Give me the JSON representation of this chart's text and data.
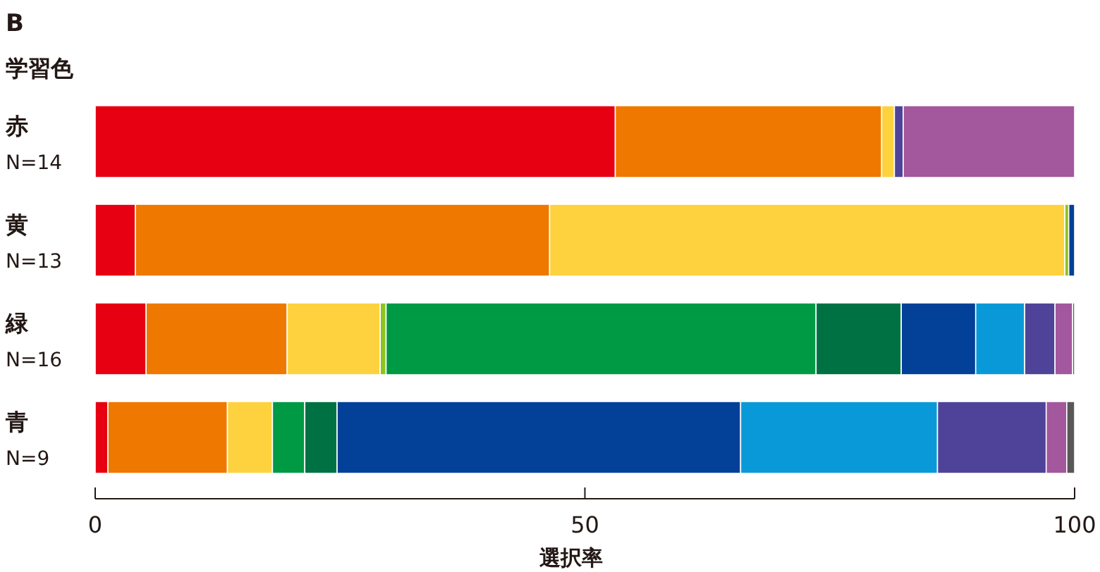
{
  "chart_data": {
    "type": "bar",
    "orientation": "horizontal",
    "stacked": true,
    "title": "B",
    "ylabel": "学習色",
    "xlabel": "選択率",
    "categories": [
      "赤\nN=14",
      "黄\nN=13",
      "緑\nN=16",
      "青\nN=9"
    ],
    "series": [
      {
        "color": "#e60012",
        "values": [
          53.1,
          4.1,
          5.2,
          1.3
        ]
      },
      {
        "color": "#ef7800",
        "values": [
          27.2,
          42.3,
          14.4,
          12.2
        ]
      },
      {
        "color": "#fdd23e",
        "values": [
          1.3,
          52.6,
          9.5,
          4.6
        ]
      },
      {
        "color": "#8fc31f",
        "values": [
          null,
          0.4,
          0.6,
          null
        ]
      },
      {
        "color": "#009944",
        "values": [
          null,
          null,
          43.9,
          3.3
        ]
      },
      {
        "color": "#007143",
        "values": [
          null,
          null,
          8.7,
          3.3
        ]
      },
      {
        "color": "#034098",
        "values": [
          null,
          0.6,
          7.6,
          41.2
        ]
      },
      {
        "color": "#0a99d8",
        "values": [
          null,
          null,
          5.0,
          20.1
        ]
      },
      {
        "color": "#4f4399",
        "values": [
          0.9,
          null,
          3.1,
          11.1
        ]
      },
      {
        "color": "#a3579d",
        "values": [
          17.5,
          null,
          1.8,
          2.1
        ]
      },
      {
        "color": "#595757",
        "values": [
          null,
          null,
          0.2,
          0.8
        ]
      }
    ],
    "xlim": [
      0,
      100
    ],
    "xticks": [
      0,
      50,
      100
    ],
    "grid": false
  }
}
